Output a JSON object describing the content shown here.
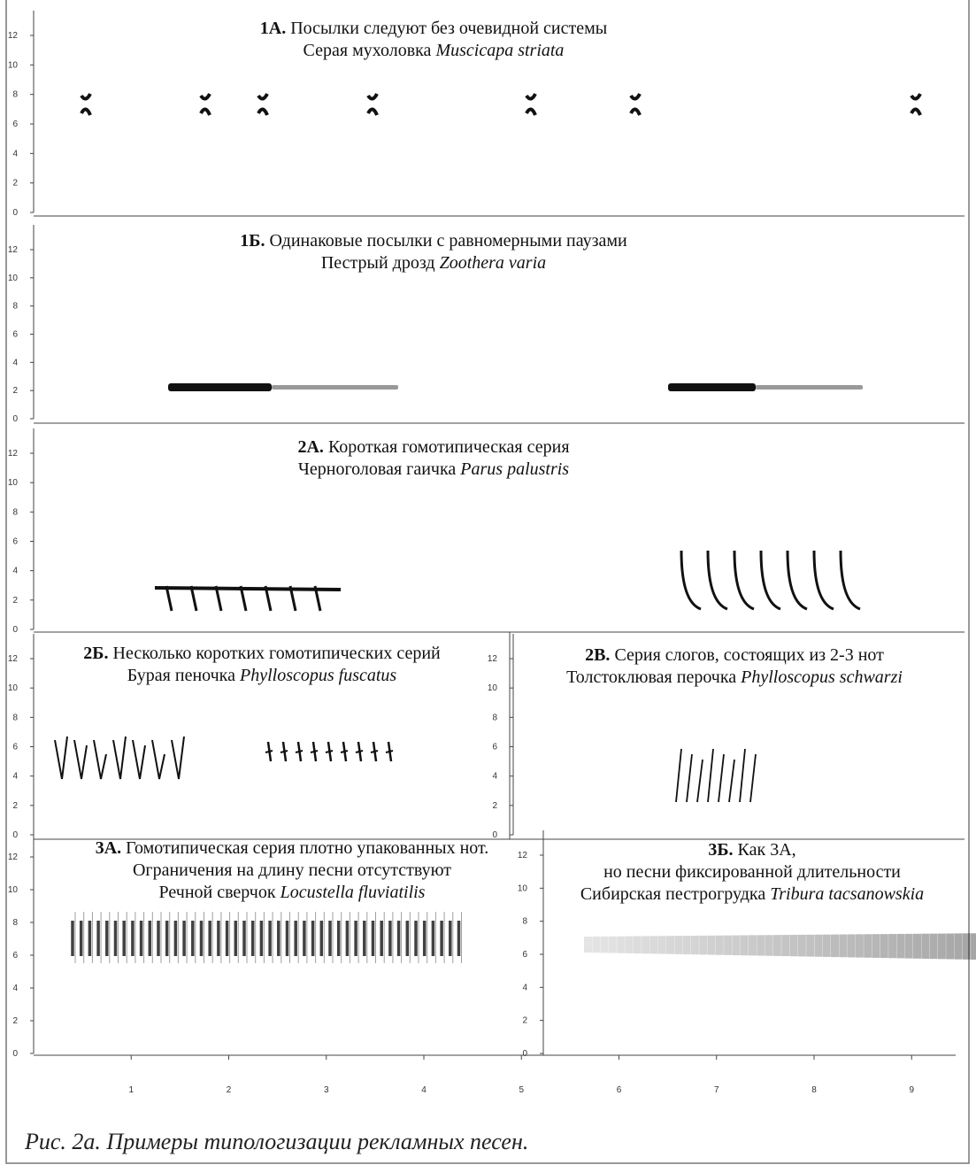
{
  "figure": {
    "yticks": [
      0,
      2,
      4,
      6,
      8,
      10,
      12
    ],
    "xticks": [
      1,
      2,
      3,
      4,
      5,
      6,
      7,
      8,
      9
    ],
    "panels": [
      {
        "label": "1А.",
        "lines": [
          "Посылки следуют  без очевидной системы"
        ],
        "species": "Серая мухоловка",
        "latin": "Muscicapa  striata"
      },
      {
        "label": "1Б.",
        "lines": [
          "Одинаковые посылки  с равномерными паузами"
        ],
        "species": "Пестрый дрозд",
        "latin": "Zoothera  varia"
      },
      {
        "label": "2А.",
        "lines": [
          "Короткая гомотипическая серия"
        ],
        "species": "Черноголовая гаичка",
        "latin": "Parus palustris"
      },
      {
        "label": "2Б.",
        "lines": [
          "Несколько коротких гомотипических серий"
        ],
        "species": "Бурая пеночка",
        "latin": "Phylloscopus fuscatus"
      },
      {
        "label": "2В.",
        "lines": [
          "Серия слогов, состоящих из 2-3 нот"
        ],
        "species": "Толстоклювая перочка",
        "latin": "Phylloscopus schwarzi"
      },
      {
        "label": "3А.",
        "lines": [
          "Гомотипическая серия плотно упакованных нот.",
          "Ограничения на длину песни отсутствуют"
        ],
        "species": "Речной сверчок",
        "latin": "Locustella fluviatilis"
      },
      {
        "label": "3Б.",
        "lines": [
          "Как 3А,",
          "но песни фиксированной длительности"
        ],
        "species": "Сибирская пестрогрудка",
        "latin": "Tribura tacsanowskia"
      }
    ],
    "caption": "Рис. 2а. Примеры типологизации рекламных песен."
  }
}
